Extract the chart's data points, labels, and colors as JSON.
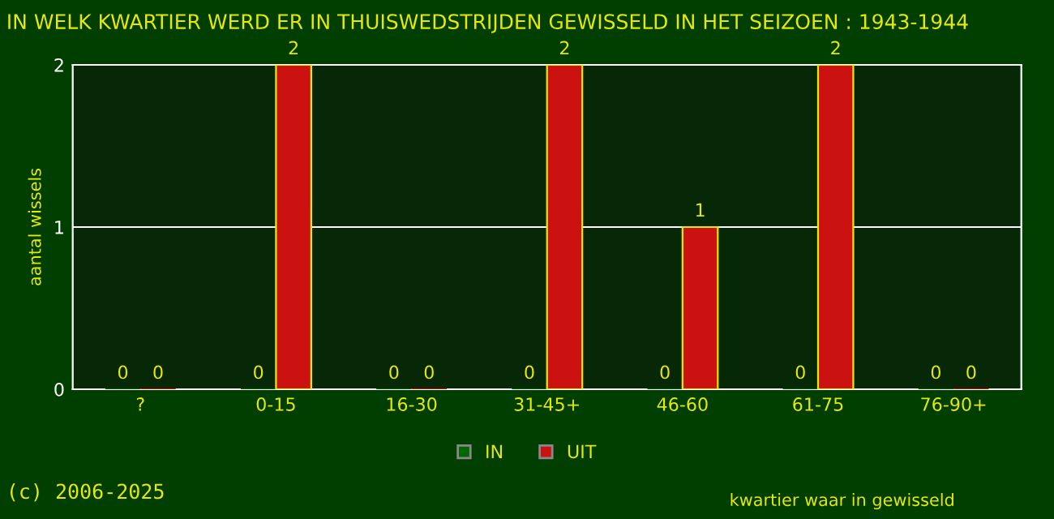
{
  "chart_data": {
    "type": "bar",
    "title": "IN WELK KWARTIER WERD ER IN THUISWEDSTRIJDEN GEWISSELD IN HET SEIZOEN : 1943-1944",
    "xlabel": "kwartier waar in gewisseld",
    "ylabel": "aantal wissels",
    "categories": [
      "?",
      "0-15",
      "16-30",
      "31-45+",
      "46-60",
      "61-75",
      "76-90+"
    ],
    "series": [
      {
        "name": "IN",
        "color": "#006600",
        "values": [
          0,
          0,
          0,
          0,
          0,
          0,
          0
        ]
      },
      {
        "name": "UIT",
        "color": "#cc1111",
        "values": [
          0,
          2,
          0,
          2,
          1,
          2,
          0
        ]
      }
    ],
    "ylim": [
      0,
      2
    ],
    "yticks": [
      0,
      1,
      2
    ],
    "grid": "y",
    "legend": "bottom",
    "data_labels": true,
    "annotations": [
      "(c) 2006-2025"
    ]
  }
}
